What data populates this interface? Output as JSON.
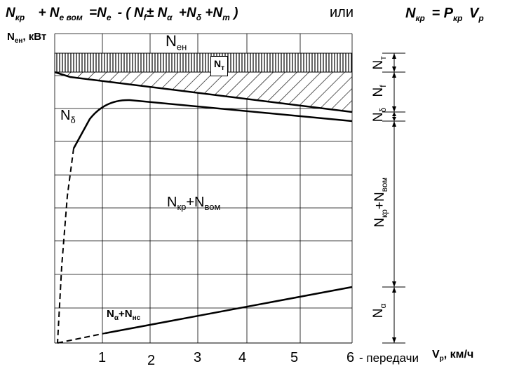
{
  "equation": {
    "part1": "N",
    "part1_sub": "кр",
    "part2": "+ N",
    "part2_sub": "е вом",
    "part3": "=N",
    "part3_sub": "е",
    "part4": "- ( N",
    "part4_sub": "f",
    "part5": "± N",
    "part5_sub": "α",
    "part6": "+N",
    "part6_sub": "δ",
    "part7": "+N",
    "part7_sub": "т",
    "part8": ")"
  },
  "or_word": "или",
  "equation2": {
    "a": "N",
    "a_sub": "кр",
    "b": "= P",
    "b_sub": "кр",
    "c": "V",
    "c_sub": "р"
  },
  "y_axis_label": {
    "main": "N",
    "sub": "ен",
    "unit": ", кВт"
  },
  "labels": {
    "nen": {
      "main": "N",
      "sub": "ен"
    },
    "nt_box": {
      "main": "N",
      "sub": "т"
    },
    "ndelta_left": {
      "main": "N",
      "sub": "δ"
    },
    "center": {
      "a": "N",
      "a_sub": "кр",
      "b": "+N",
      "b_sub": "вом"
    },
    "bottom_left": {
      "a": "N",
      "a_sub": "α",
      "b": "+N",
      "b_sub": "нс"
    }
  },
  "right_labels": {
    "nt": {
      "main": "N",
      "sub": "т"
    },
    "nf": {
      "main": "N",
      "sub": "f"
    },
    "ndelta": {
      "main": "N",
      "sub": "δ"
    },
    "nkr_nvom": {
      "a": "N",
      "a_sub": "кр",
      "b": "+N",
      "b_sub": "вом"
    },
    "nalpha": {
      "main": "N",
      "sub": "α"
    }
  },
  "x_ticks": [
    "1",
    "2",
    "3",
    "4",
    "5",
    "6"
  ],
  "x_suffix": "- передачи",
  "x_axis_label": {
    "main": "V",
    "sub": "р",
    "unit": ", км/ч"
  }
}
